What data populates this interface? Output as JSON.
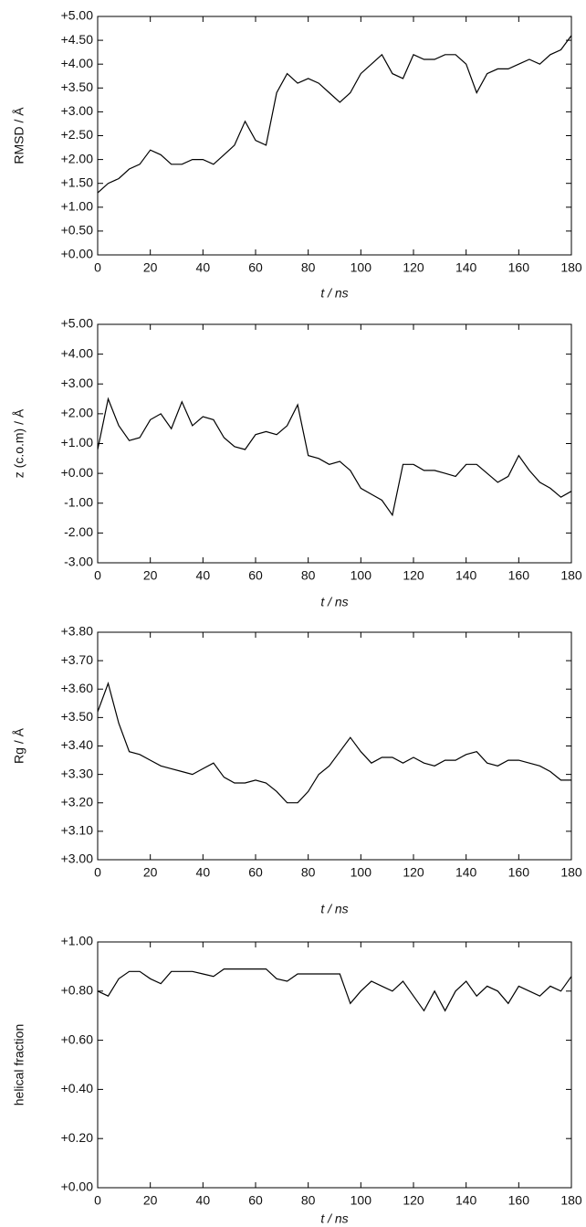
{
  "chart_data": [
    {
      "type": "line",
      "x_label": "t / ns",
      "y_label": "RMSD / Å",
      "x": [
        0,
        4,
        8,
        12,
        16,
        20,
        24,
        28,
        32,
        36,
        40,
        44,
        48,
        52,
        56,
        60,
        64,
        68,
        72,
        76,
        80,
        84,
        88,
        92,
        96,
        100,
        104,
        108,
        112,
        116,
        120,
        124,
        128,
        132,
        136,
        140,
        144,
        148,
        152,
        156,
        160,
        164,
        168,
        172,
        176,
        180
      ],
      "values": [
        1.3,
        1.5,
        1.6,
        1.8,
        1.9,
        2.2,
        2.1,
        1.9,
        1.9,
        2.0,
        2.0,
        1.9,
        2.1,
        2.3,
        2.8,
        2.4,
        2.3,
        3.4,
        3.8,
        3.6,
        3.7,
        3.6,
        3.4,
        3.2,
        3.4,
        3.8,
        4.0,
        4.2,
        3.8,
        3.7,
        4.2,
        4.1,
        4.1,
        4.2,
        4.2,
        4.0,
        3.4,
        3.8,
        3.9,
        3.9,
        4.0,
        4.1,
        4.0,
        4.2,
        4.3,
        4.6
      ],
      "color": "#000000",
      "xlim": [
        0,
        180
      ],
      "xticks": [
        0,
        20,
        40,
        60,
        80,
        100,
        120,
        140,
        160,
        180
      ],
      "ylim": [
        0,
        5
      ],
      "yticks": [
        {
          "value": 0,
          "label": "+0.00"
        },
        {
          "value": 0.5,
          "label": "+0.50"
        },
        {
          "value": 1,
          "label": "+1.00"
        },
        {
          "value": 1.5,
          "label": "+1.50"
        },
        {
          "value": 2,
          "label": "+2.00"
        },
        {
          "value": 2.5,
          "label": "+2.50"
        },
        {
          "value": 3,
          "label": "+3.00"
        },
        {
          "value": 3.5,
          "label": "+3.50"
        },
        {
          "value": 4,
          "label": "+4.00"
        },
        {
          "value": 4.5,
          "label": "+4.50"
        },
        {
          "value": 5,
          "label": "+5.00"
        }
      ]
    },
    {
      "type": "line",
      "x_label": "t / ns",
      "y_label": "z (c.o.m) / Å",
      "x": [
        0,
        4,
        8,
        12,
        16,
        20,
        24,
        28,
        32,
        36,
        40,
        44,
        48,
        52,
        56,
        60,
        64,
        68,
        72,
        76,
        80,
        84,
        88,
        92,
        96,
        100,
        104,
        108,
        112,
        116,
        120,
        124,
        128,
        132,
        136,
        140,
        144,
        148,
        152,
        156,
        160,
        164,
        168,
        172,
        176,
        180
      ],
      "values": [
        0.8,
        2.5,
        1.6,
        1.1,
        1.2,
        1.8,
        2.0,
        1.5,
        2.4,
        1.6,
        1.9,
        1.8,
        1.2,
        0.9,
        0.8,
        1.3,
        1.4,
        1.3,
        1.6,
        2.3,
        0.6,
        0.5,
        0.3,
        0.4,
        0.1,
        -0.5,
        -0.7,
        -0.9,
        -1.4,
        0.3,
        0.3,
        0.1,
        0.1,
        0.0,
        -0.1,
        0.3,
        0.3,
        0.0,
        -0.3,
        -0.1,
        0.6,
        0.1,
        -0.3,
        -0.5,
        -0.8,
        -0.6
      ],
      "color": "#000000",
      "xlim": [
        0,
        180
      ],
      "xticks": [
        0,
        20,
        40,
        60,
        80,
        100,
        120,
        140,
        160,
        180
      ],
      "ylim": [
        -3,
        5
      ],
      "yticks": [
        {
          "value": -3,
          "label": "-3.00"
        },
        {
          "value": -2,
          "label": "-2.00"
        },
        {
          "value": -1,
          "label": "-1.00"
        },
        {
          "value": 0,
          "label": "+0.00"
        },
        {
          "value": 1,
          "label": "+1.00"
        },
        {
          "value": 2,
          "label": "+2.00"
        },
        {
          "value": 3,
          "label": "+3.00"
        },
        {
          "value": 4,
          "label": "+4.00"
        },
        {
          "value": 5,
          "label": "+5.00"
        }
      ]
    },
    {
      "type": "line",
      "x_label": "t / ns",
      "y_label": "Rg / Å",
      "x": [
        0,
        4,
        8,
        12,
        16,
        20,
        24,
        28,
        32,
        36,
        40,
        44,
        48,
        52,
        56,
        60,
        64,
        68,
        72,
        76,
        80,
        84,
        88,
        92,
        96,
        100,
        104,
        108,
        112,
        116,
        120,
        124,
        128,
        132,
        136,
        140,
        144,
        148,
        152,
        156,
        160,
        164,
        168,
        172,
        176,
        180
      ],
      "values": [
        3.52,
        3.62,
        3.48,
        3.38,
        3.37,
        3.35,
        3.33,
        3.32,
        3.31,
        3.3,
        3.32,
        3.34,
        3.29,
        3.27,
        3.27,
        3.28,
        3.27,
        3.24,
        3.2,
        3.2,
        3.24,
        3.3,
        3.33,
        3.38,
        3.43,
        3.38,
        3.34,
        3.36,
        3.36,
        3.34,
        3.36,
        3.34,
        3.33,
        3.35,
        3.35,
        3.37,
        3.38,
        3.34,
        3.33,
        3.35,
        3.35,
        3.34,
        3.33,
        3.31,
        3.28,
        3.28
      ],
      "color": "#000000",
      "xlim": [
        0,
        180
      ],
      "xticks": [
        0,
        20,
        40,
        60,
        80,
        100,
        120,
        140,
        160,
        180
      ],
      "ylim": [
        3,
        3.8
      ],
      "yticks": [
        {
          "value": 3,
          "label": "+3.00"
        },
        {
          "value": 3.1,
          "label": "+3.10"
        },
        {
          "value": 3.2,
          "label": "+3.20"
        },
        {
          "value": 3.3,
          "label": "+3.30"
        },
        {
          "value": 3.4,
          "label": "+3.40"
        },
        {
          "value": 3.5,
          "label": "+3.50"
        },
        {
          "value": 3.6,
          "label": "+3.60"
        },
        {
          "value": 3.7,
          "label": "+3.70"
        },
        {
          "value": 3.8,
          "label": "+3.80"
        }
      ]
    },
    {
      "type": "line",
      "x_label": "t / ns",
      "y_label": "helical fraction",
      "x": [
        0,
        4,
        8,
        12,
        16,
        20,
        24,
        28,
        32,
        36,
        40,
        44,
        48,
        52,
        56,
        60,
        64,
        68,
        72,
        76,
        80,
        84,
        88,
        92,
        96,
        100,
        104,
        108,
        112,
        116,
        120,
        124,
        128,
        132,
        136,
        140,
        144,
        148,
        152,
        156,
        160,
        164,
        168,
        172,
        176,
        180
      ],
      "values": [
        0.8,
        0.78,
        0.85,
        0.88,
        0.88,
        0.85,
        0.83,
        0.88,
        0.88,
        0.88,
        0.87,
        0.86,
        0.89,
        0.89,
        0.89,
        0.89,
        0.89,
        0.85,
        0.84,
        0.87,
        0.87,
        0.87,
        0.87,
        0.87,
        0.75,
        0.8,
        0.84,
        0.82,
        0.8,
        0.84,
        0.78,
        0.72,
        0.8,
        0.72,
        0.8,
        0.84,
        0.78,
        0.82,
        0.8,
        0.75,
        0.82,
        0.8,
        0.78,
        0.82,
        0.8,
        0.86
      ],
      "color": "#000000",
      "xlim": [
        0,
        180
      ],
      "xticks": [
        0,
        20,
        40,
        60,
        80,
        100,
        120,
        140,
        160,
        180
      ],
      "ylim": [
        0,
        1
      ],
      "yticks": [
        {
          "value": 0,
          "label": "+0.00"
        },
        {
          "value": 0.2,
          "label": "+0.20"
        },
        {
          "value": 0.4,
          "label": "+0.40"
        },
        {
          "value": 0.6,
          "label": "+0.60"
        },
        {
          "value": 0.8,
          "label": "+0.80"
        },
        {
          "value": 1,
          "label": "+1.00"
        }
      ]
    }
  ]
}
